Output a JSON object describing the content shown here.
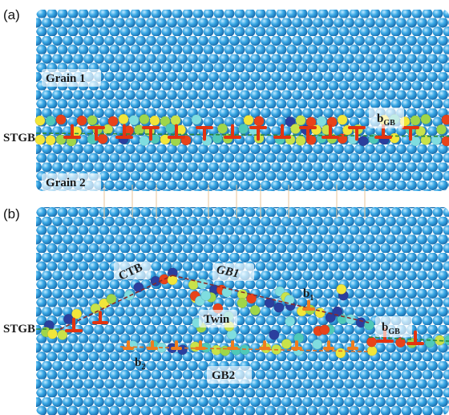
{
  "panel_a": {
    "label": "(a)",
    "grain_top": "Grain 1",
    "grain_bottom": "Grain 2",
    "boundary": "STGB",
    "burgers": {
      "text": "b",
      "sub": "GB"
    }
  },
  "panel_b": {
    "label": "(b)",
    "boundary": "STGB",
    "ctb": "CTB",
    "gb1": "GB1",
    "b1": {
      "text": "b",
      "sub": "1"
    },
    "twin": "Twin",
    "b2": {
      "text": "b",
      "sub": "2"
    },
    "gb2": "GB2",
    "burgers": {
      "text": "b",
      "sub": "GB"
    }
  }
}
